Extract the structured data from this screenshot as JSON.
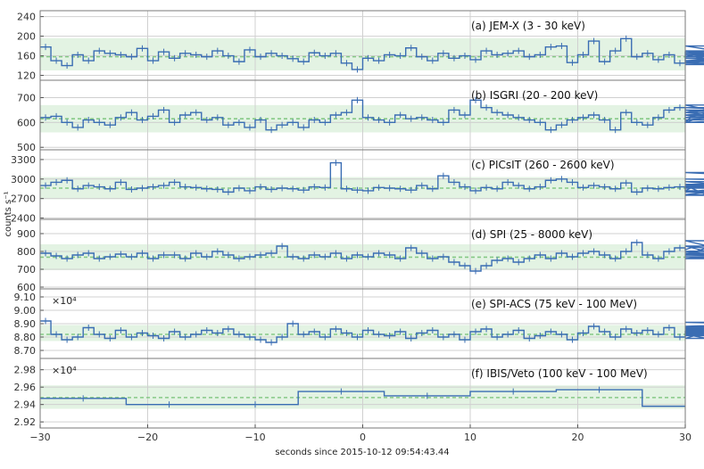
{
  "chart_data": {
    "type": "line",
    "xlabel": "seconds since 2015-10-12 09:54:43.44",
    "ylabel": "counts s⁻¹",
    "xlim": [
      -30,
      30
    ],
    "xticks": [
      -30,
      -20,
      -10,
      0,
      10,
      20,
      30
    ],
    "colors": {
      "line": "#3a6db3",
      "band": "#e3f3e3",
      "mean": "#86c986",
      "grid": "#d0d0d0",
      "frame": "#7a7a7a"
    },
    "panels": [
      {
        "label": "(a) JEM-X (3 - 30 keV)",
        "ylim": [
          110,
          252
        ],
        "yticks": [
          120,
          160,
          200,
          240
        ],
        "ytick_labels": [
          "120",
          "160",
          "200",
          "240"
        ],
        "multiplier": "",
        "mean": 158,
        "band": [
          130,
          196
        ],
        "bin_width": 1,
        "x_start": -30,
        "values": [
          178,
          150,
          140,
          162,
          150,
          170,
          165,
          162,
          158,
          175,
          150,
          168,
          155,
          165,
          162,
          158,
          170,
          160,
          148,
          172,
          158,
          165,
          160,
          154,
          148,
          166,
          160,
          165,
          145,
          132,
          155,
          150,
          162,
          160,
          176,
          158,
          150,
          165,
          155,
          160,
          152,
          170,
          162,
          165,
          170,
          158,
          162,
          178,
          180,
          146,
          162,
          190,
          148,
          170,
          195,
          158,
          165,
          152,
          162,
          145,
          168,
          170,
          158,
          162,
          145,
          155,
          148,
          165,
          180,
          150,
          158,
          162,
          170,
          142,
          148,
          150,
          165
        ]
      },
      {
        "label": "(b) ISGRI (20 - 200 keV)",
        "ylim": [
          490,
          770
        ],
        "yticks": [
          500,
          600,
          700
        ],
        "ytick_labels": [
          "500",
          "600",
          "700"
        ],
        "multiplier": "",
        "mean": 615,
        "band": [
          560,
          670
        ],
        "bin_width": 1,
        "x_start": -30,
        "values": [
          620,
          625,
          600,
          580,
          610,
          600,
          590,
          620,
          640,
          610,
          625,
          650,
          600,
          630,
          640,
          610,
          620,
          590,
          600,
          580,
          610,
          570,
          590,
          600,
          580,
          610,
          600,
          630,
          640,
          690,
          620,
          610,
          600,
          630,
          615,
          620,
          610,
          600,
          650,
          630,
          690,
          660,
          640,
          630,
          620,
          610,
          600,
          570,
          590,
          610,
          620,
          630,
          610,
          570,
          640,
          600,
          590,
          620,
          650,
          660,
          600,
          640,
          650,
          630,
          600,
          670,
          620,
          610,
          640,
          600,
          620,
          650,
          620,
          630,
          660,
          630,
          610
        ]
      },
      {
        "label": "(c) PICsIT (260 - 2600 keV)",
        "ylim": [
          2380,
          3450
        ],
        "yticks": [
          2400,
          2700,
          3000,
          3300
        ],
        "ytick_labels": [
          "2400",
          "2700",
          "3000",
          "3300"
        ],
        "multiplier": "",
        "mean": 2860,
        "band": [
          2690,
          3030
        ],
        "bin_width": 1,
        "x_start": -30,
        "values": [
          2900,
          2950,
          2980,
          2850,
          2900,
          2880,
          2850,
          2950,
          2840,
          2860,
          2880,
          2900,
          2950,
          2880,
          2870,
          2850,
          2840,
          2800,
          2860,
          2820,
          2880,
          2840,
          2860,
          2850,
          2830,
          2880,
          2870,
          3250,
          2850,
          2830,
          2820,
          2870,
          2860,
          2850,
          2830,
          2900,
          2850,
          3050,
          2950,
          2880,
          2820,
          2870,
          2850,
          2950,
          2900,
          2850,
          2880,
          2980,
          3000,
          2950,
          2870,
          2900,
          2880,
          2850,
          2940,
          2800,
          2860,
          2850,
          2870,
          2880,
          2820,
          2900,
          2760,
          2820,
          2800,
          2880,
          2900,
          2920,
          2860,
          2880,
          2900,
          2880,
          3100,
          3000,
          2960,
          2750,
          2760
        ]
      },
      {
        "label": "(d) SPI (25 - 8000 keV)",
        "ylim": [
          590,
          980
        ],
        "yticks": [
          600,
          700,
          800,
          900
        ],
        "ytick_labels": [
          "600",
          "700",
          "800",
          "900"
        ],
        "multiplier": "",
        "mean": 768,
        "band": [
          695,
          840
        ],
        "bin_width": 1,
        "x_start": -30,
        "values": [
          790,
          775,
          760,
          780,
          790,
          760,
          770,
          785,
          770,
          790,
          760,
          780,
          780,
          760,
          790,
          770,
          800,
          780,
          760,
          770,
          780,
          790,
          830,
          770,
          760,
          780,
          770,
          790,
          760,
          780,
          770,
          790,
          780,
          760,
          820,
          790,
          760,
          770,
          740,
          720,
          690,
          720,
          750,
          760,
          740,
          760,
          780,
          760,
          790,
          770,
          790,
          800,
          780,
          760,
          800,
          850,
          780,
          760,
          800,
          820,
          810,
          830,
          800,
          780,
          860,
          790,
          760,
          780,
          770,
          760,
          800,
          830,
          760,
          790,
          780,
          760,
          780
        ]
      },
      {
        "label": "(e) SPI-ACS (75 keV - 100 MeV)",
        "ylim": [
          8.64,
          9.16
        ],
        "yticks": [
          8.7,
          8.8,
          8.9,
          9.0,
          9.1
        ],
        "ytick_labels": [
          "8.70",
          "8.80",
          "8.90",
          "9.00",
          "9.10"
        ],
        "multiplier": "×10⁴",
        "mean": 8.82,
        "band": [
          8.77,
          8.89
        ],
        "bin_width": 1,
        "x_start": -30,
        "values": [
          8.92,
          8.82,
          8.78,
          8.8,
          8.87,
          8.82,
          8.79,
          8.85,
          8.8,
          8.83,
          8.81,
          8.79,
          8.84,
          8.8,
          8.82,
          8.85,
          8.83,
          8.86,
          8.82,
          8.8,
          8.78,
          8.76,
          8.8,
          8.9,
          8.82,
          8.84,
          8.8,
          8.86,
          8.83,
          8.8,
          8.85,
          8.82,
          8.81,
          8.84,
          8.79,
          8.83,
          8.85,
          8.8,
          8.82,
          8.78,
          8.84,
          8.86,
          8.8,
          8.82,
          8.85,
          8.79,
          8.81,
          8.84,
          8.82,
          8.78,
          8.83,
          8.88,
          8.84,
          8.8,
          8.86,
          8.83,
          8.85,
          8.82,
          8.87,
          8.8,
          8.84,
          8.82,
          8.79,
          8.86,
          8.83,
          8.81,
          8.88,
          8.84,
          8.82,
          8.85,
          8.87,
          8.88,
          8.91,
          8.88,
          8.86,
          8.82,
          8.84
        ]
      },
      {
        "label": "(f) IBIS/Veto (100 keV - 100 MeV)",
        "ylim": [
          2.913,
          2.993
        ],
        "yticks": [
          2.92,
          2.94,
          2.96,
          2.98
        ],
        "ytick_labels": [
          "2.92",
          "2.94",
          "2.96",
          "2.98"
        ],
        "multiplier": "×10⁴",
        "mean": 2.948,
        "band": [
          2.935,
          2.962
        ],
        "bin_width": 8,
        "x_start": -30,
        "values": [
          2.947,
          2.94,
          2.94,
          2.955,
          2.95,
          2.955,
          2.957,
          2.938
        ]
      }
    ]
  }
}
